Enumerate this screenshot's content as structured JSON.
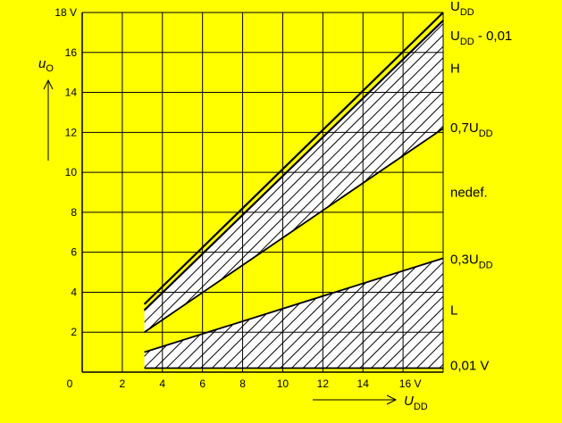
{
  "colors": {
    "background": "#ffff00",
    "ink": "#000000",
    "region_fill": "#ffffff"
  },
  "chart_data": {
    "type": "area",
    "title": "",
    "xlim": [
      0,
      18
    ],
    "ylim": [
      0,
      18
    ],
    "grid": true,
    "x_ticks": [
      "0",
      "2",
      "4",
      "6",
      "8",
      "10",
      "12",
      "14",
      "16 V"
    ],
    "x_tick_values": [
      0,
      2,
      4,
      6,
      8,
      10,
      12,
      14,
      16
    ],
    "y_ticks": [
      "2",
      "4",
      "6",
      "8",
      "10",
      "12",
      "14",
      "16",
      "18 V"
    ],
    "y_tick_values": [
      2,
      4,
      6,
      8,
      10,
      12,
      14,
      16,
      18
    ],
    "xlabel": {
      "main": "U",
      "sub": "DD"
    },
    "ylabel": {
      "main": "u",
      "sub": "O"
    },
    "x_start": 3.1,
    "x_end": 18,
    "lines": [
      {
        "label_main": "U",
        "label_sub": "DD",
        "label_suffix": "",
        "y": [
          3.4,
          18
        ]
      },
      {
        "label_main": "U",
        "label_sub": "DD",
        "label_suffix": " - 0,01",
        "y": [
          3.1,
          17.6
        ]
      },
      {
        "label_main": "0,7U",
        "label_sub": "DD",
        "label_suffix": "",
        "y": [
          2.0,
          12.2
        ]
      },
      {
        "label_main": "0,3U",
        "label_sub": "DD",
        "label_suffix": "",
        "y": [
          1.0,
          5.7
        ]
      },
      {
        "label_main": "0,01 V",
        "label_sub": "",
        "label_suffix": "",
        "y": [
          0.2,
          0.2
        ]
      }
    ],
    "hatched_regions": [
      {
        "upper": [
          3.1,
          17.6
        ],
        "lower": [
          2.0,
          12.2
        ]
      },
      {
        "upper": [
          1.0,
          5.7
        ],
        "lower": [
          0.2,
          0.2
        ]
      }
    ],
    "zone_labels": [
      {
        "text": "H",
        "y": 15.2
      },
      {
        "text": "nedef.",
        "y": 9.0
      },
      {
        "text": "L",
        "y": 3.1
      }
    ]
  }
}
